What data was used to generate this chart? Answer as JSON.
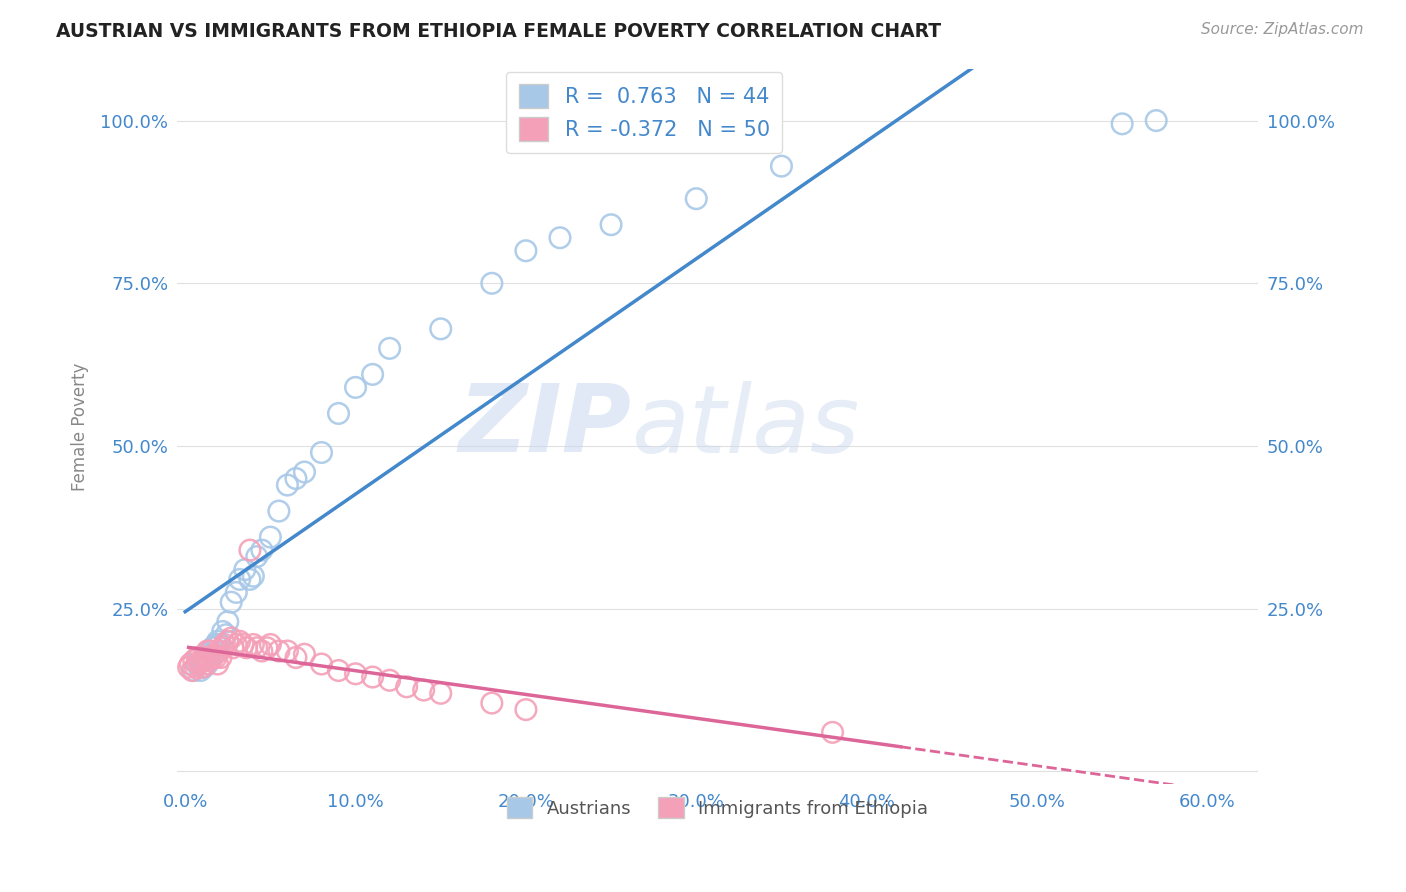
{
  "title": "AUSTRIAN VS IMMIGRANTS FROM ETHIOPIA FEMALE POVERTY CORRELATION CHART",
  "source": "Source: ZipAtlas.com",
  "xlim": [
    -0.005,
    0.63
  ],
  "ylim": [
    -0.02,
    1.08
  ],
  "x_tick_vals": [
    0.0,
    0.1,
    0.2,
    0.3,
    0.4,
    0.5,
    0.6
  ],
  "y_tick_vals": [
    0.0,
    0.25,
    0.5,
    0.75,
    1.0
  ],
  "x_tick_labels": [
    "0.0%",
    "10.0%",
    "20.0%",
    "30.0%",
    "40.0%",
    "50.0%",
    "60.0%"
  ],
  "y_tick_labels": [
    "",
    "25.0%",
    "50.0%",
    "75.0%",
    "100.0%"
  ],
  "austrians_x": [
    0.005,
    0.007,
    0.008,
    0.009,
    0.01,
    0.011,
    0.012,
    0.013,
    0.014,
    0.015,
    0.016,
    0.018,
    0.019,
    0.02,
    0.022,
    0.024,
    0.025,
    0.027,
    0.03,
    0.032,
    0.035,
    0.038,
    0.04,
    0.042,
    0.045,
    0.05,
    0.055,
    0.06,
    0.065,
    0.07,
    0.08,
    0.09,
    0.1,
    0.11,
    0.12,
    0.15,
    0.18,
    0.2,
    0.22,
    0.25,
    0.3,
    0.35,
    0.55,
    0.57
  ],
  "austrians_y": [
    0.155,
    0.165,
    0.175,
    0.155,
    0.17,
    0.16,
    0.175,
    0.165,
    0.185,
    0.18,
    0.19,
    0.195,
    0.2,
    0.195,
    0.215,
    0.21,
    0.23,
    0.26,
    0.275,
    0.295,
    0.31,
    0.295,
    0.3,
    0.33,
    0.34,
    0.36,
    0.4,
    0.44,
    0.45,
    0.46,
    0.49,
    0.55,
    0.59,
    0.61,
    0.65,
    0.68,
    0.75,
    0.8,
    0.82,
    0.84,
    0.88,
    0.93,
    0.995,
    1.0
  ],
  "ethiopia_x": [
    0.002,
    0.003,
    0.004,
    0.005,
    0.006,
    0.007,
    0.008,
    0.009,
    0.01,
    0.011,
    0.012,
    0.013,
    0.014,
    0.015,
    0.016,
    0.017,
    0.018,
    0.019,
    0.02,
    0.021,
    0.022,
    0.023,
    0.025,
    0.027,
    0.028,
    0.03,
    0.032,
    0.034,
    0.036,
    0.038,
    0.04,
    0.042,
    0.045,
    0.048,
    0.05,
    0.055,
    0.06,
    0.065,
    0.07,
    0.08,
    0.09,
    0.1,
    0.11,
    0.12,
    0.13,
    0.14,
    0.15,
    0.18,
    0.2,
    0.38
  ],
  "ethiopia_y": [
    0.16,
    0.165,
    0.155,
    0.17,
    0.16,
    0.175,
    0.165,
    0.17,
    0.16,
    0.175,
    0.165,
    0.185,
    0.17,
    0.185,
    0.175,
    0.18,
    0.175,
    0.165,
    0.185,
    0.175,
    0.19,
    0.195,
    0.2,
    0.205,
    0.19,
    0.195,
    0.2,
    0.195,
    0.19,
    0.34,
    0.195,
    0.19,
    0.185,
    0.19,
    0.195,
    0.185,
    0.185,
    0.175,
    0.18,
    0.165,
    0.155,
    0.15,
    0.145,
    0.14,
    0.13,
    0.125,
    0.12,
    0.105,
    0.095,
    0.06
  ],
  "blue_scatter_color": "#a8c8e8",
  "pink_scatter_color": "#f4a0b8",
  "blue_line_color": "#4488cc",
  "pink_line_color": "#dd6699",
  "pink_line_solid_end": 0.42,
  "blue_line_x_start": 0.0,
  "blue_line_x_end": 0.63,
  "R_austrians": 0.763,
  "N_austrians": 44,
  "R_ethiopia": -0.372,
  "N_ethiopia": 50,
  "legend_label_1": "Austrians",
  "legend_label_2": "Immigrants from Ethiopia",
  "watermark_zip": "ZIP",
  "watermark_atlas": "atlas",
  "background_color": "#ffffff",
  "grid_color": "#e0e0e0",
  "tick_color": "#4488cc",
  "ylabel": "Female Poverty",
  "ylabel_color": "#888888"
}
